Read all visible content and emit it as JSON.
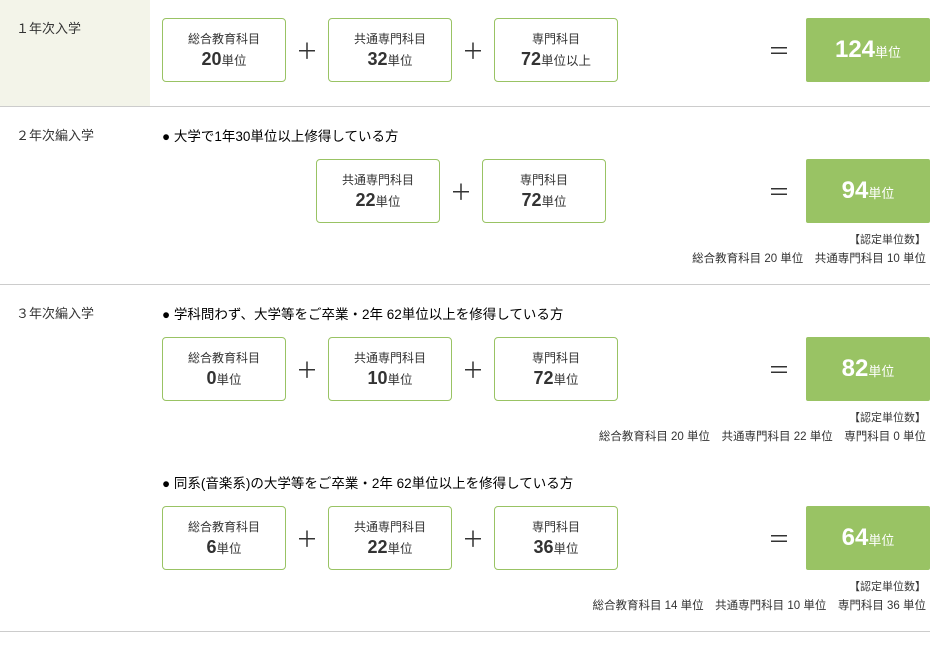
{
  "colors": {
    "box_border": "#99c364",
    "total_bg": "#99c364",
    "total_text": "#ffffff",
    "highlight_bg": "#f3f4e9",
    "text": "#333333",
    "divider": "#cccccc"
  },
  "sections": [
    {
      "label": "１年次入学",
      "highlighted": true,
      "blocks": [
        {
          "heading": null,
          "indented": false,
          "boxes": [
            {
              "title": "総合教育科目",
              "value_num": "20",
              "value_suffix": "単位"
            },
            {
              "title": "共通専門科目",
              "value_num": "32",
              "value_suffix": "単位"
            },
            {
              "title": "専門科目",
              "value_num": "72",
              "value_suffix": "単位以上"
            }
          ],
          "total": {
            "num": "124",
            "suffix": "単位"
          },
          "recognized": null
        }
      ]
    },
    {
      "label": "２年次編入学",
      "highlighted": false,
      "blocks": [
        {
          "heading": "大学で1年30単位以上修得している方",
          "indented": true,
          "boxes": [
            {
              "title": "共通専門科目",
              "value_num": "22",
              "value_suffix": "単位"
            },
            {
              "title": "専門科目",
              "value_num": "72",
              "value_suffix": "単位"
            }
          ],
          "total": {
            "num": "94",
            "suffix": "単位"
          },
          "recognized": {
            "heading": "【認定単位数】",
            "items": "総合教育科目  20 単位　共通専門科目  10 単位"
          }
        }
      ]
    },
    {
      "label": "３年次編入学",
      "highlighted": false,
      "blocks": [
        {
          "heading": "学科問わず、大学等をご卒業・2年 62単位以上を修得している方",
          "indented": false,
          "boxes": [
            {
              "title": "総合教育科目",
              "value_num": "0",
              "value_suffix": "単位"
            },
            {
              "title": "共通専門科目",
              "value_num": "10",
              "value_suffix": "単位"
            },
            {
              "title": "専門科目",
              "value_num": "72",
              "value_suffix": "単位"
            }
          ],
          "total": {
            "num": "82",
            "suffix": "単位"
          },
          "recognized": {
            "heading": "【認定単位数】",
            "items": "総合教育科目  20 単位　共通専門科目  22 単位　専門科目  0 単位"
          }
        },
        {
          "heading": "同系(音楽系)の大学等をご卒業・2年 62単位以上を修得している方",
          "indented": false,
          "boxes": [
            {
              "title": "総合教育科目",
              "value_num": "6",
              "value_suffix": "単位"
            },
            {
              "title": "共通専門科目",
              "value_num": "22",
              "value_suffix": "単位"
            },
            {
              "title": "専門科目",
              "value_num": "36",
              "value_suffix": "単位"
            }
          ],
          "total": {
            "num": "64",
            "suffix": "単位"
          },
          "recognized": {
            "heading": "【認定単位数】",
            "items": "総合教育科目  14 単位　共通専門科目  10 単位　専門科目  36 単位"
          }
        }
      ]
    }
  ]
}
